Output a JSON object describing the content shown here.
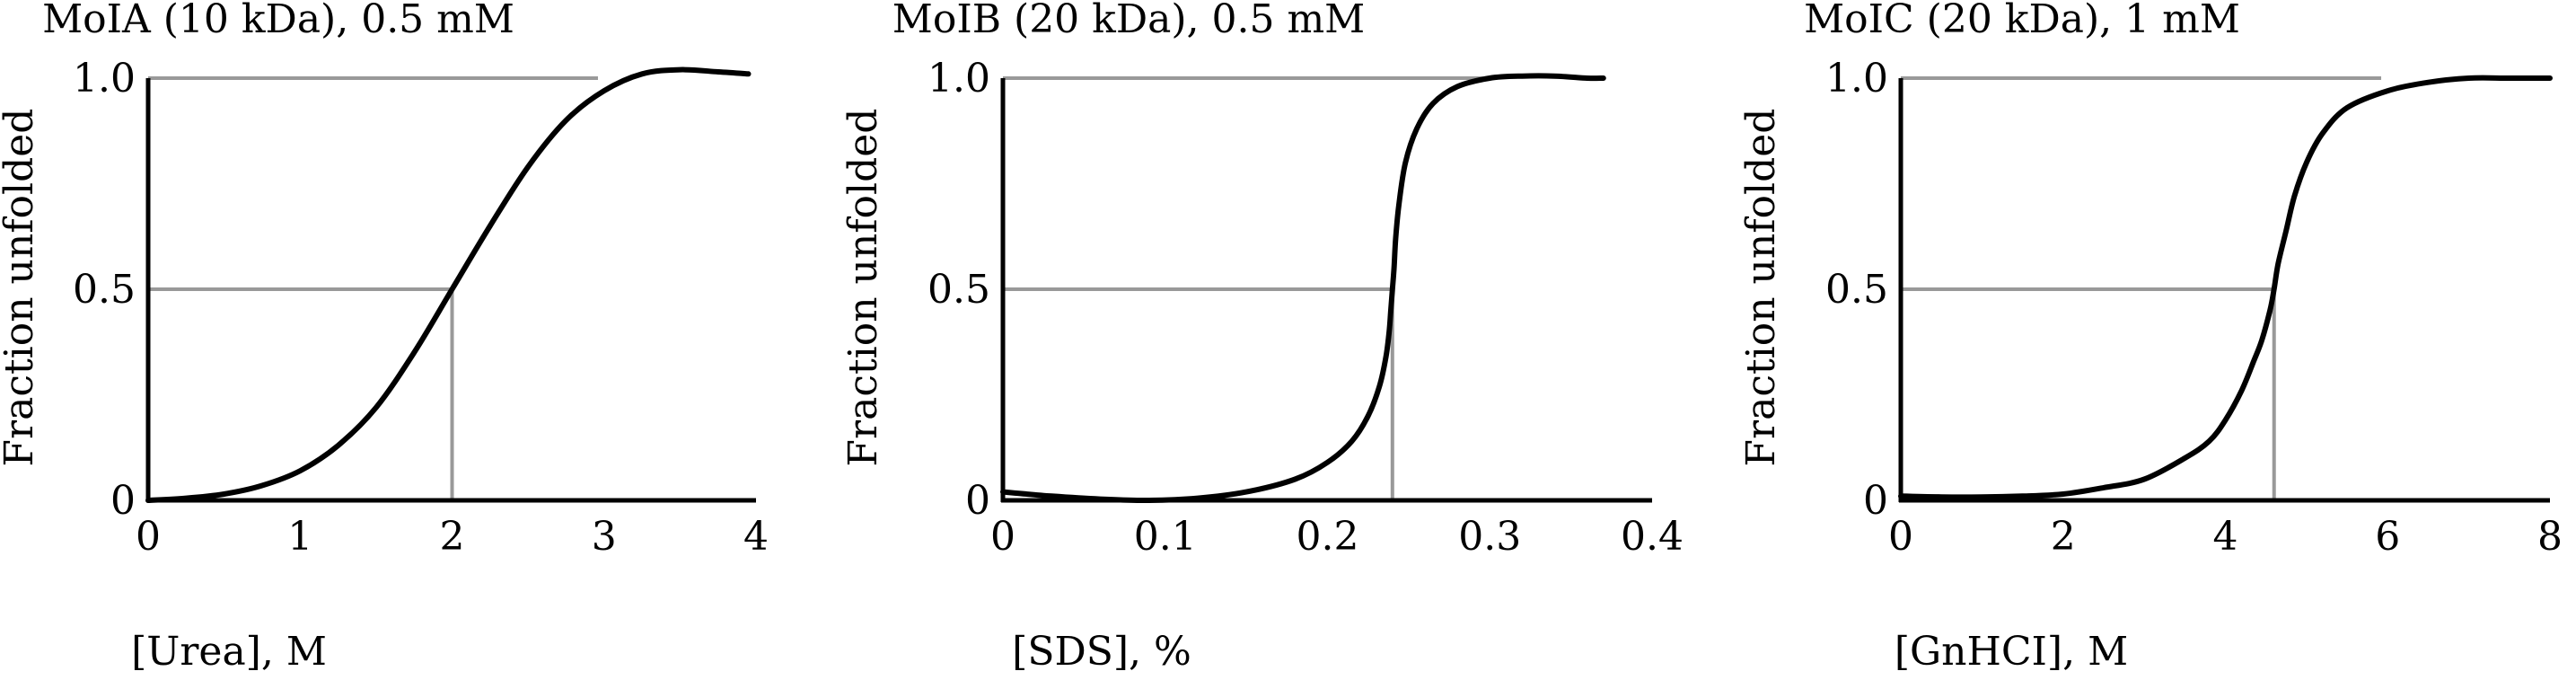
{
  "chart_data": [
    {
      "type": "line",
      "title": "MoIA (10 kDa), 0.5 mM",
      "xlabel": "[Urea], M",
      "ylabel": "Fraction unfolded",
      "xlim": [
        0,
        4
      ],
      "ylim": [
        0,
        1
      ],
      "xticks": [
        0,
        1,
        2,
        3,
        4
      ],
      "xtick_labels": [
        "0",
        "1",
        "2",
        "3",
        "4"
      ],
      "yticks": [
        0,
        0.5,
        1
      ],
      "ytick_labels": [
        "0",
        "0.5",
        "1.0"
      ],
      "grid": false,
      "legend": "none",
      "midpoint": [
        2,
        0.5
      ],
      "guide_line_color": "#999999",
      "curve_color": "#000000",
      "series": [
        {
          "x": [
            0,
            0.25,
            0.5,
            0.75,
            1.0,
            1.25,
            1.5,
            1.75,
            2.0,
            2.25,
            2.5,
            2.75,
            3.0,
            3.25,
            3.5,
            3.75,
            3.95
          ],
          "y": [
            0.0,
            0.005,
            0.015,
            0.035,
            0.07,
            0.13,
            0.22,
            0.35,
            0.5,
            0.65,
            0.79,
            0.9,
            0.97,
            1.01,
            1.02,
            1.015,
            1.01
          ]
        }
      ]
    },
    {
      "type": "line",
      "title": "MoIB (20 kDa), 0.5 mM",
      "xlabel": "[SDS], %",
      "ylabel": "Fraction unfolded",
      "xlim": [
        0,
        0.4
      ],
      "ylim": [
        0,
        1
      ],
      "xticks": [
        0,
        0.1,
        0.2,
        0.3,
        0.4
      ],
      "xtick_labels": [
        "0",
        "0.1",
        "0.2",
        "0.3",
        "0.4"
      ],
      "yticks": [
        0,
        0.5,
        1
      ],
      "ytick_labels": [
        "0",
        "0.5",
        "1.0"
      ],
      "grid": false,
      "legend": "none",
      "midpoint": [
        0.24,
        0.5
      ],
      "guide_line_color": "#999999",
      "curve_color": "#000000",
      "series": [
        {
          "x": [
            0,
            0.03,
            0.06,
            0.09,
            0.12,
            0.15,
            0.18,
            0.2,
            0.215,
            0.225,
            0.232,
            0.236,
            0.238,
            0.239,
            0.24,
            0.241,
            0.242,
            0.244,
            0.248,
            0.255,
            0.265,
            0.28,
            0.3,
            0.32,
            0.34,
            0.36,
            0.37
          ],
          "y": [
            0.02,
            0.01,
            0.003,
            0.0,
            0.005,
            0.02,
            0.05,
            0.09,
            0.14,
            0.2,
            0.27,
            0.34,
            0.4,
            0.45,
            0.5,
            0.55,
            0.62,
            0.7,
            0.8,
            0.88,
            0.94,
            0.98,
            1.0,
            1.005,
            1.005,
            1.0,
            1.0
          ]
        }
      ]
    },
    {
      "type": "line",
      "title": "MoIC (20 kDa), 1 mM",
      "xlabel": "[GnHCI], M",
      "ylabel": "Fraction unfolded",
      "xlim": [
        0,
        8
      ],
      "ylim": [
        0,
        1
      ],
      "xticks": [
        0,
        2,
        4,
        6,
        8
      ],
      "xtick_labels": [
        "0",
        "2",
        "4",
        "6",
        "8"
      ],
      "yticks": [
        0,
        0.5,
        1
      ],
      "ytick_labels": [
        "0",
        "0.5",
        "1.0"
      ],
      "grid": false,
      "legend": "none",
      "midpoint": [
        4.6,
        0.5
      ],
      "guide_line_color": "#999999",
      "curve_color": "#000000",
      "series": [
        {
          "x": [
            0,
            0.5,
            1.0,
            1.5,
            2.0,
            2.5,
            3.0,
            3.5,
            3.8,
            4.0,
            4.2,
            4.35,
            4.45,
            4.55,
            4.6,
            4.65,
            4.75,
            4.85,
            5.0,
            5.2,
            5.5,
            6.0,
            6.5,
            7.0,
            7.5,
            8.0
          ],
          "y": [
            0.01,
            0.008,
            0.008,
            0.01,
            0.015,
            0.03,
            0.05,
            0.1,
            0.14,
            0.19,
            0.26,
            0.33,
            0.38,
            0.45,
            0.5,
            0.56,
            0.64,
            0.72,
            0.8,
            0.87,
            0.93,
            0.97,
            0.99,
            1.0,
            1.0,
            1.0
          ]
        }
      ]
    }
  ]
}
